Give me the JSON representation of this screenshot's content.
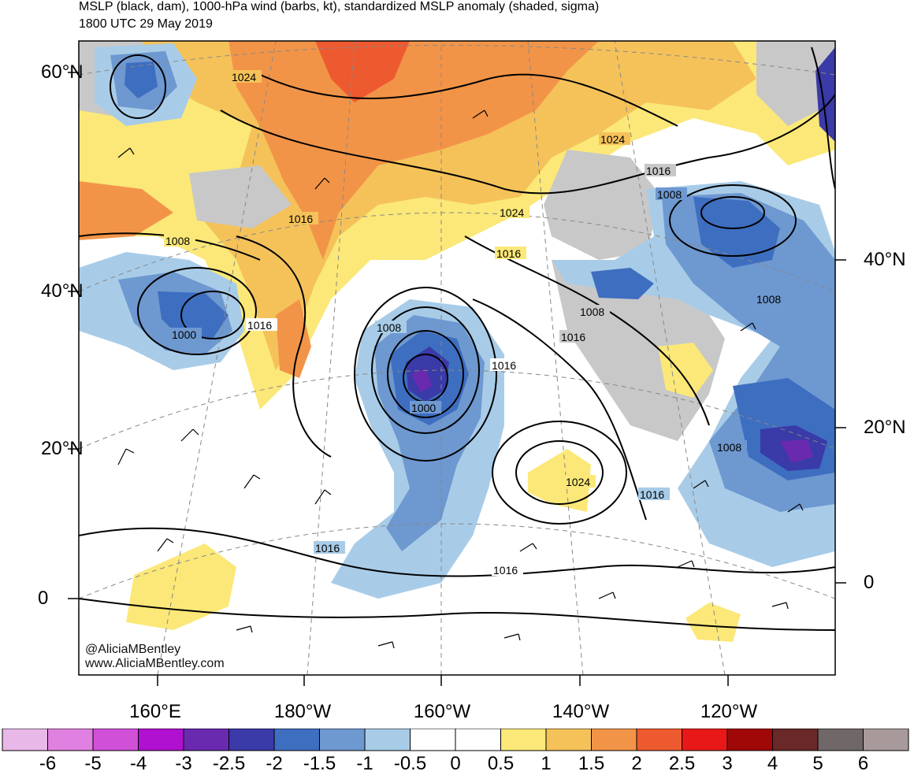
{
  "title_line1": "MSLP (black, dam), 1000-hPa wind (barbs, kt), standardized MSLP anomaly (shaded, sigma)",
  "title_line2": "1800 UTC 29 May 2019",
  "lat_labels_left": [
    "60°N",
    "40°N",
    "20°N",
    "0"
  ],
  "lat_labels_right": [
    "40°N",
    "20°N",
    "0"
  ],
  "lon_labels": [
    "160°E",
    "180°W",
    "160°W",
    "140°W",
    "120°W"
  ],
  "isobar_labels": [
    "1024",
    "1024",
    "1024",
    "1016",
    "1008",
    "1016",
    "1008",
    "1008",
    "1016",
    "1016",
    "1000",
    "1000",
    "1016",
    "1008",
    "1016",
    "1016",
    "1008",
    "1024",
    "1016",
    "1016",
    "1016",
    "1008"
  ],
  "credit_line1": "@AliciaMBentley",
  "credit_line2": "www.AliciaMBentley.com",
  "colorbar": {
    "labels": [
      "-6",
      "-5",
      "-4",
      "-3",
      "-2.5",
      "-2",
      "-1.5",
      "-1",
      "-0.5",
      "0",
      "0.5",
      "1",
      "1.5",
      "2",
      "2.5",
      "3",
      "4",
      "5",
      "6"
    ],
    "colors": [
      "#e8b8e8",
      "#e080e0",
      "#d050d8",
      "#b010d0",
      "#6a2ab0",
      "#3a3aa8",
      "#3e6ec0",
      "#6e98d0",
      "#a8cce8",
      "#ffffff",
      "#ffffff",
      "#fbe878",
      "#f5c25a",
      "#f29448",
      "#ee5a30",
      "#e81818",
      "#a00808",
      "#6a2828",
      "#706868",
      "#a89a9a"
    ]
  },
  "map_colors": {
    "ocean": "#ffffff",
    "neg05": "#a8cce8",
    "neg10": "#6e98d0",
    "neg15": "#3e6ec0",
    "neg20": "#3a3aa8",
    "neg25": "#6a2ab0",
    "pos05": "#fbe878",
    "pos10": "#f5c25a",
    "pos15": "#f29448",
    "pos20": "#ee5a30",
    "land_gray": "#c8c8c8"
  }
}
